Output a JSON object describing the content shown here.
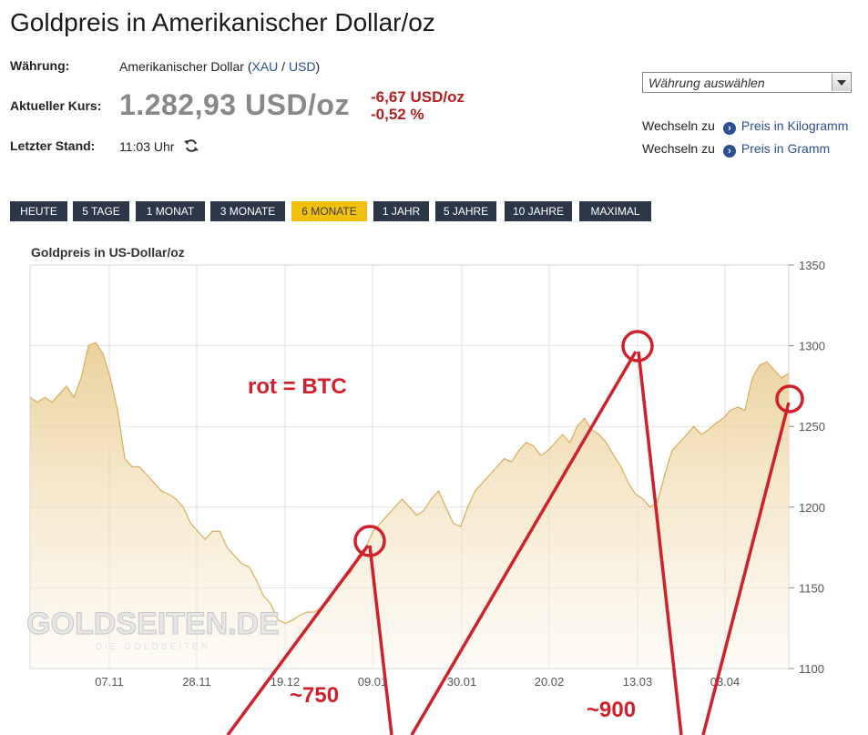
{
  "page": {
    "title": "Goldpreis in Amerikanischer Dollar/oz"
  },
  "info": {
    "waehrung_label": "Währung:",
    "waehrung_value": "Amerikanischer Dollar (",
    "waehrung_link1": "XAU",
    "waehrung_sep": " / ",
    "waehrung_link2": "USD",
    "waehrung_close": ")",
    "kurs_label": "Aktueller Kurs:",
    "kurs_value": "1.282,93 USD/oz",
    "change_abs": "-6,67 USD/oz",
    "change_pct": "-0,52 %",
    "stand_label": "Letzter Stand:",
    "stand_value": "11:03 Uhr",
    "refresh_icon": "refresh-icon",
    "change_color": "#b41e1e"
  },
  "currency_select": {
    "selected": "Währung auswählen"
  },
  "switch_links": [
    {
      "prefix": "Wechseln zu",
      "label": "Preis in Kilogramm"
    },
    {
      "prefix": "Wechseln zu",
      "label": "Preis in Gramm"
    }
  ],
  "tabs": [
    {
      "label": "HEUTE",
      "active": false
    },
    {
      "label": "5 TAGE",
      "active": false
    },
    {
      "label": "1 MONAT",
      "active": false
    },
    {
      "label": "3 MONATE",
      "active": false
    },
    {
      "label": "6 MONATE",
      "active": true
    },
    {
      "label": "1 JAHR",
      "active": false
    },
    {
      "label": "5 JAHRE",
      "active": false
    },
    {
      "label": "10 JAHRE",
      "active": false
    },
    {
      "label": "MAXIMAL",
      "active": false
    }
  ],
  "chart_data": {
    "type": "area",
    "title": "Goldpreis in US-Dollar/oz",
    "xlabel": "",
    "ylabel": "",
    "ylim": [
      1100,
      1350
    ],
    "yticks": [
      1100,
      1150,
      1200,
      1250,
      1300,
      1350
    ],
    "xticks": [
      "07.11",
      "28.11",
      "19.12",
      "09.01",
      "30.01",
      "20.02",
      "13.03",
      "03.04"
    ],
    "grid": true,
    "watermark": "GOLDSEITEN.DE",
    "watermark_sub": "DIE GOLDSEITEN",
    "series": [
      {
        "values": [
          1268,
          1265,
          1268,
          1265,
          1270,
          1275,
          1268,
          1280,
          1300,
          1302,
          1295,
          1280,
          1260,
          1230,
          1225,
          1225,
          1220,
          1215,
          1210,
          1208,
          1205,
          1200,
          1190,
          1185,
          1180,
          1185,
          1185,
          1175,
          1170,
          1165,
          1163,
          1155,
          1145,
          1140,
          1130,
          1128,
          1130,
          1133,
          1135,
          1135,
          1138,
          1142,
          1150,
          1155,
          1160,
          1170,
          1175,
          1185,
          1190,
          1195,
          1200,
          1205,
          1200,
          1195,
          1198,
          1205,
          1210,
          1200,
          1190,
          1188,
          1200,
          1210,
          1215,
          1220,
          1225,
          1230,
          1228,
          1235,
          1240,
          1238,
          1232,
          1235,
          1240,
          1245,
          1240,
          1250,
          1255,
          1248,
          1245,
          1240,
          1232,
          1225,
          1215,
          1208,
          1205,
          1200,
          1203,
          1220,
          1235,
          1240,
          1245,
          1250,
          1245,
          1248,
          1252,
          1255,
          1260,
          1262,
          1260,
          1280,
          1288,
          1290,
          1285,
          1280,
          1283
        ]
      }
    ],
    "annotations": {
      "legend_text": "rot = BTC",
      "label_1": "~750",
      "label_2": "~900",
      "color": "#d0202c"
    }
  }
}
